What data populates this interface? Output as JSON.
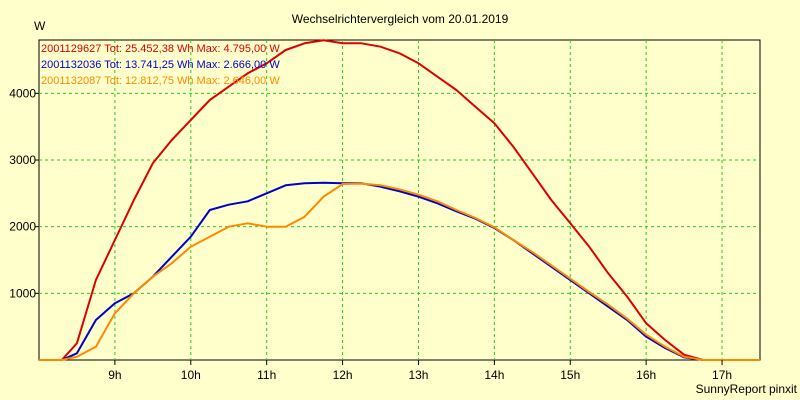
{
  "chart_data": {
    "type": "line",
    "title": "Wechselrichtervergleich vom 20.01.2019",
    "ylabel": "W",
    "xlabel": "",
    "ylim": [
      0,
      4800
    ],
    "xlim": [
      8.0,
      17.5
    ],
    "grid": true,
    "legend_position": "top-left",
    "x_ticks": [
      {
        "value": 9,
        "label": "9h"
      },
      {
        "value": 10,
        "label": "10h"
      },
      {
        "value": 11,
        "label": "11h"
      },
      {
        "value": 12,
        "label": "12h"
      },
      {
        "value": 13,
        "label": "13h"
      },
      {
        "value": 14,
        "label": "14h"
      },
      {
        "value": 15,
        "label": "15h"
      },
      {
        "value": 16,
        "label": "16h"
      },
      {
        "value": 17,
        "label": "17h"
      }
    ],
    "y_ticks": [
      {
        "value": 1000,
        "label": "1000"
      },
      {
        "value": 2000,
        "label": "2000"
      },
      {
        "value": 3000,
        "label": "3000"
      },
      {
        "value": 4000,
        "label": "4000"
      }
    ],
    "series": [
      {
        "name": "2001129627 Tot: 25.452,38 Wh Max: 4.795,00 W",
        "color": "#dd0000",
        "points": [
          [
            8.0,
            0
          ],
          [
            8.3,
            0
          ],
          [
            8.5,
            250
          ],
          [
            8.75,
            1200
          ],
          [
            9.0,
            1800
          ],
          [
            9.25,
            2400
          ],
          [
            9.5,
            2950
          ],
          [
            9.75,
            3300
          ],
          [
            10.0,
            3600
          ],
          [
            10.25,
            3900
          ],
          [
            10.5,
            4100
          ],
          [
            10.75,
            4300
          ],
          [
            11.0,
            4450
          ],
          [
            11.25,
            4650
          ],
          [
            11.5,
            4750
          ],
          [
            11.75,
            4795
          ],
          [
            12.0,
            4750
          ],
          [
            12.25,
            4750
          ],
          [
            12.5,
            4700
          ],
          [
            12.75,
            4600
          ],
          [
            13.0,
            4450
          ],
          [
            13.25,
            4250
          ],
          [
            13.5,
            4050
          ],
          [
            13.75,
            3800
          ],
          [
            14.0,
            3550
          ],
          [
            14.25,
            3200
          ],
          [
            14.5,
            2800
          ],
          [
            14.75,
            2400
          ],
          [
            15.0,
            2050
          ],
          [
            15.25,
            1700
          ],
          [
            15.5,
            1300
          ],
          [
            15.75,
            950
          ],
          [
            16.0,
            550
          ],
          [
            16.25,
            300
          ],
          [
            16.5,
            80
          ],
          [
            16.75,
            0
          ],
          [
            17.5,
            0
          ]
        ]
      },
      {
        "name": "2001132036 Tot: 13.741,25 Wh Max: 2.666,00 W",
        "color": "#0000cc",
        "points": [
          [
            8.0,
            0
          ],
          [
            8.3,
            0
          ],
          [
            8.5,
            100
          ],
          [
            8.75,
            600
          ],
          [
            9.0,
            850
          ],
          [
            9.25,
            1000
          ],
          [
            9.5,
            1250
          ],
          [
            9.75,
            1550
          ],
          [
            10.0,
            1850
          ],
          [
            10.25,
            2250
          ],
          [
            10.5,
            2330
          ],
          [
            10.75,
            2380
          ],
          [
            11.0,
            2500
          ],
          [
            11.25,
            2620
          ],
          [
            11.5,
            2650
          ],
          [
            11.75,
            2660
          ],
          [
            12.0,
            2650
          ],
          [
            12.25,
            2650
          ],
          [
            12.5,
            2600
          ],
          [
            12.75,
            2530
          ],
          [
            13.0,
            2450
          ],
          [
            13.25,
            2350
          ],
          [
            13.5,
            2230
          ],
          [
            13.75,
            2120
          ],
          [
            14.0,
            1980
          ],
          [
            14.25,
            1800
          ],
          [
            14.5,
            1600
          ],
          [
            14.75,
            1400
          ],
          [
            15.0,
            1200
          ],
          [
            15.25,
            1000
          ],
          [
            15.5,
            800
          ],
          [
            15.75,
            600
          ],
          [
            16.0,
            350
          ],
          [
            16.25,
            180
          ],
          [
            16.5,
            40
          ],
          [
            16.75,
            0
          ],
          [
            17.5,
            0
          ]
        ]
      },
      {
        "name": "2001132087 Tot: 12.812,75 Wh Max: 2.646,00 W",
        "color": "#ff8800",
        "points": [
          [
            8.0,
            0
          ],
          [
            8.3,
            0
          ],
          [
            8.5,
            50
          ],
          [
            8.75,
            200
          ],
          [
            9.0,
            700
          ],
          [
            9.25,
            1000
          ],
          [
            9.5,
            1250
          ],
          [
            9.75,
            1450
          ],
          [
            10.0,
            1700
          ],
          [
            10.25,
            1850
          ],
          [
            10.5,
            2000
          ],
          [
            10.75,
            2050
          ],
          [
            11.0,
            2000
          ],
          [
            11.25,
            2000
          ],
          [
            11.5,
            2150
          ],
          [
            11.75,
            2450
          ],
          [
            12.0,
            2640
          ],
          [
            12.25,
            2646
          ],
          [
            12.5,
            2620
          ],
          [
            12.75,
            2560
          ],
          [
            13.0,
            2480
          ],
          [
            13.25,
            2380
          ],
          [
            13.5,
            2250
          ],
          [
            13.75,
            2130
          ],
          [
            14.0,
            1990
          ],
          [
            14.25,
            1800
          ],
          [
            14.5,
            1620
          ],
          [
            14.75,
            1420
          ],
          [
            15.0,
            1220
          ],
          [
            15.25,
            1020
          ],
          [
            15.5,
            830
          ],
          [
            15.75,
            620
          ],
          [
            16.0,
            380
          ],
          [
            16.25,
            200
          ],
          [
            16.5,
            50
          ],
          [
            16.75,
            0
          ],
          [
            17.5,
            0
          ]
        ]
      }
    ],
    "footer": "SunnyReport pinxit"
  }
}
